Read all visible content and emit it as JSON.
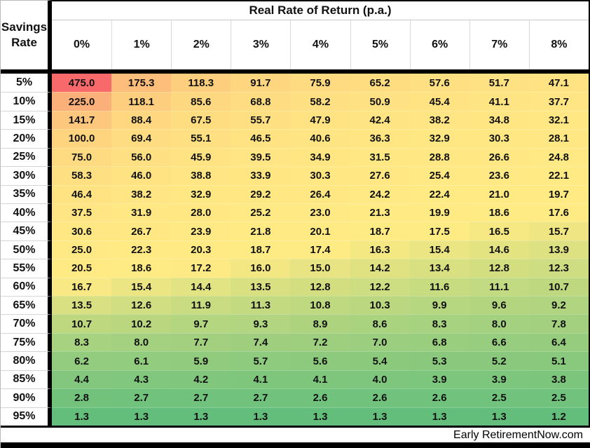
{
  "chart_data": {
    "type": "heatmap",
    "title": "Real Rate of Return (p.a.)",
    "corner_label": "Savings Rate",
    "col_headers": [
      "0%",
      "1%",
      "2%",
      "3%",
      "4%",
      "5%",
      "6%",
      "7%",
      "8%"
    ],
    "row_headers": [
      "5%",
      "10%",
      "15%",
      "20%",
      "25%",
      "30%",
      "35%",
      "40%",
      "45%",
      "50%",
      "55%",
      "60%",
      "65%",
      "70%",
      "75%",
      "80%",
      "85%",
      "90%",
      "95%"
    ],
    "values": [
      [
        475.0,
        175.3,
        118.3,
        91.7,
        75.9,
        65.2,
        57.6,
        51.7,
        47.1
      ],
      [
        225.0,
        118.1,
        85.6,
        68.8,
        58.2,
        50.9,
        45.4,
        41.1,
        37.7
      ],
      [
        141.7,
        88.4,
        67.5,
        55.7,
        47.9,
        42.4,
        38.2,
        34.8,
        32.1
      ],
      [
        100.0,
        69.4,
        55.1,
        46.5,
        40.6,
        36.3,
        32.9,
        30.3,
        28.1
      ],
      [
        75.0,
        56.0,
        45.9,
        39.5,
        34.9,
        31.5,
        28.8,
        26.6,
        24.8
      ],
      [
        58.3,
        46.0,
        38.8,
        33.9,
        30.3,
        27.6,
        25.4,
        23.6,
        22.1
      ],
      [
        46.4,
        38.2,
        32.9,
        29.2,
        26.4,
        24.2,
        22.4,
        21.0,
        19.7
      ],
      [
        37.5,
        31.9,
        28.0,
        25.2,
        23.0,
        21.3,
        19.9,
        18.6,
        17.6
      ],
      [
        30.6,
        26.7,
        23.9,
        21.8,
        20.1,
        18.7,
        17.5,
        16.5,
        15.7
      ],
      [
        25.0,
        22.3,
        20.3,
        18.7,
        17.4,
        16.3,
        15.4,
        14.6,
        13.9
      ],
      [
        20.5,
        18.6,
        17.2,
        16.0,
        15.0,
        14.2,
        13.4,
        12.8,
        12.3
      ],
      [
        16.7,
        15.4,
        14.4,
        13.5,
        12.8,
        12.2,
        11.6,
        11.1,
        10.7
      ],
      [
        13.5,
        12.6,
        11.9,
        11.3,
        10.8,
        10.3,
        9.9,
        9.6,
        9.2
      ],
      [
        10.7,
        10.2,
        9.7,
        9.3,
        8.9,
        8.6,
        8.3,
        8.0,
        7.8
      ],
      [
        8.3,
        8.0,
        7.7,
        7.4,
        7.2,
        7.0,
        6.8,
        6.6,
        6.4
      ],
      [
        6.2,
        6.1,
        5.9,
        5.7,
        5.6,
        5.4,
        5.3,
        5.2,
        5.1
      ],
      [
        4.4,
        4.3,
        4.2,
        4.1,
        4.1,
        4.0,
        3.9,
        3.9,
        3.8
      ],
      [
        2.8,
        2.7,
        2.7,
        2.7,
        2.6,
        2.6,
        2.6,
        2.5,
        2.5
      ],
      [
        1.3,
        1.3,
        1.3,
        1.3,
        1.3,
        1.3,
        1.3,
        1.3,
        1.2
      ]
    ],
    "colorscale": {
      "min": 1.2,
      "mid": 17.4,
      "max": 475.0,
      "green_hex": "#63BE7B",
      "yellow_hex": "#FFEB84",
      "red_hex": "#F8696B"
    },
    "value_format": "one_decimal",
    "legend_position": "none",
    "grid": false
  },
  "footer": {
    "watermark": "Early RetirementNow.com"
  }
}
